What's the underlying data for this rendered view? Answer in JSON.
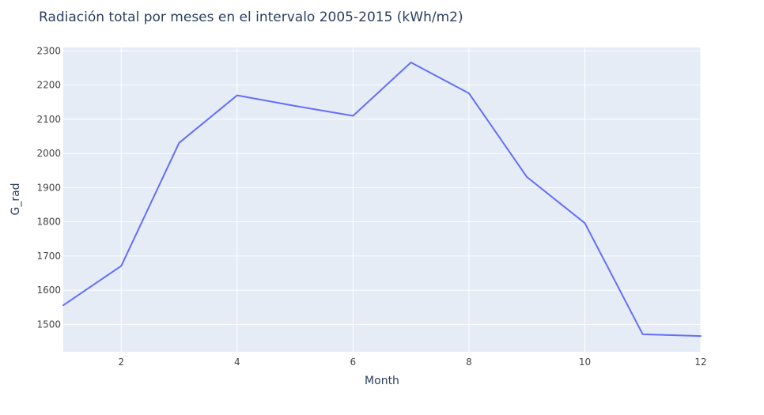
{
  "chart_data": {
    "type": "line",
    "title": "Radiación total por meses en el intervalo 2005-2015 (kWh/m2)",
    "xlabel": "Month",
    "ylabel": "G_rad",
    "x": [
      1,
      2,
      3,
      4,
      5,
      6,
      7,
      8,
      9,
      10,
      11,
      12
    ],
    "series": [
      {
        "name": "",
        "color": "#636efa",
        "values": [
          1556,
          1671,
          2031,
          2170,
          2139,
          2110,
          2266,
          2176,
          1931,
          1796,
          1471,
          1466
        ]
      }
    ],
    "xlim": [
      1,
      12
    ],
    "ylim": [
      1420,
      2310
    ],
    "x_ticks": [
      2,
      4,
      6,
      8,
      10,
      12
    ],
    "y_ticks": [
      1500,
      1600,
      1700,
      1800,
      1900,
      2000,
      2100,
      2200,
      2300
    ],
    "grid": true,
    "colors": {
      "plot_background": "#e5ecf6",
      "grid": "#ffffff",
      "text": "#2a3f5f",
      "tick_text": "#444444"
    }
  }
}
